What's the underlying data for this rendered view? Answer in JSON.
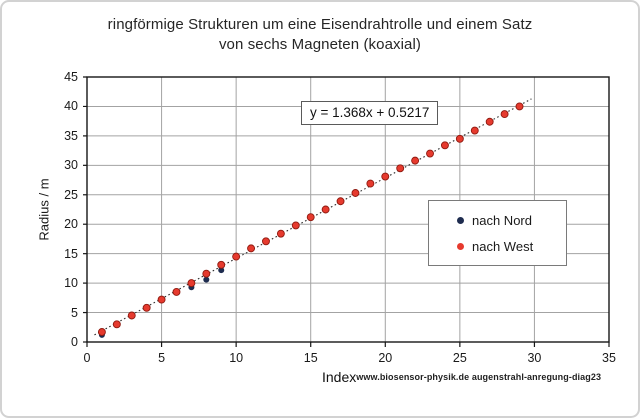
{
  "chart_data": {
    "type": "scatter",
    "title": "ringförmige Strukturen um eine Eisendrahtrolle und einem Satz von sechs Magneten (koaxial)",
    "title_lines": [
      "ringförmige Strukturen um eine Eisendrahtrolle und einem Satz",
      "von sechs Magneten (koaxial)"
    ],
    "xlabel": "Index",
    "ylabel": "Radius / m",
    "footer_note": "www.biosensor-physik.de augenstrahl-anregung-diag23",
    "xlim": [
      0,
      35
    ],
    "ylim": [
      0,
      45
    ],
    "xticks": [
      0,
      5,
      10,
      15,
      20,
      25,
      30,
      35
    ],
    "yticks": [
      0,
      5,
      10,
      15,
      20,
      25,
      30,
      35,
      40,
      45
    ],
    "grid": true,
    "legend_position": "middle-right",
    "colors": {
      "grid": "#a3a3a3",
      "axis": "#161616",
      "nord": "#1e2c4f",
      "west": "#e63a2e",
      "west_edge": "#8f1a10",
      "trendline": "#2b2b2b"
    },
    "trendline": {
      "label": "y = 1.368x + 0.5217",
      "slope": 1.368,
      "intercept": 0.5217,
      "x_range": [
        0.5,
        29.8
      ],
      "style": "dotted"
    },
    "series": [
      {
        "id": "nord",
        "name": "nach Nord",
        "color": "#1e2c4f",
        "points": [
          [
            1,
            1.2
          ],
          [
            7,
            9.3
          ],
          [
            8,
            10.6
          ],
          [
            9,
            12.2
          ]
        ]
      },
      {
        "id": "west",
        "name": "nach West",
        "color": "#e63a2e",
        "edge": "#8f1a10",
        "points": [
          [
            1,
            1.7
          ],
          [
            2,
            3.0
          ],
          [
            3,
            4.5
          ],
          [
            4,
            5.8
          ],
          [
            5,
            7.2
          ],
          [
            6,
            8.5
          ],
          [
            7,
            10.0
          ],
          [
            8,
            11.6
          ],
          [
            9,
            13.1
          ],
          [
            10,
            14.5
          ],
          [
            11,
            15.9
          ],
          [
            12,
            17.1
          ],
          [
            13,
            18.4
          ],
          [
            14,
            19.8
          ],
          [
            15,
            21.2
          ],
          [
            16,
            22.5
          ],
          [
            17,
            23.9
          ],
          [
            18,
            25.3
          ],
          [
            19,
            26.9
          ],
          [
            20,
            28.1
          ],
          [
            21,
            29.5
          ],
          [
            22,
            30.8
          ],
          [
            23,
            32.0
          ],
          [
            24,
            33.4
          ],
          [
            25,
            34.5
          ],
          [
            26,
            35.9
          ],
          [
            27,
            37.4
          ],
          [
            28,
            38.7
          ],
          [
            29,
            40.0
          ]
        ]
      }
    ]
  }
}
